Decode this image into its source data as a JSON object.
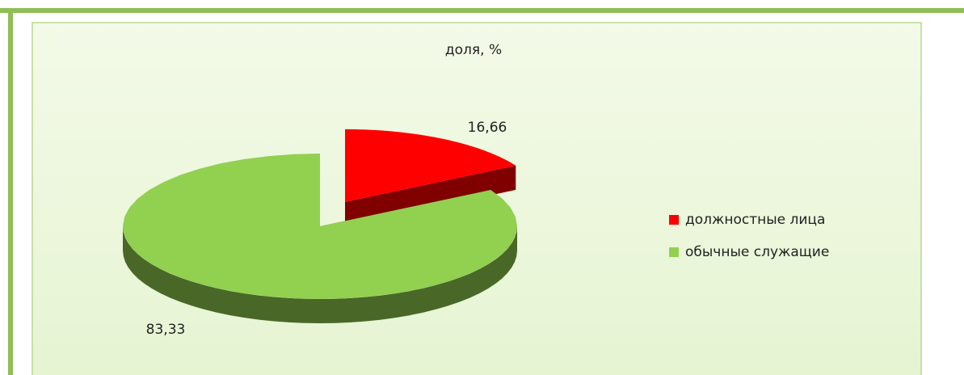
{
  "chart_data": {
    "type": "pie",
    "title": "доля, %",
    "categories": [
      "должностные лица",
      "обычные служащие"
    ],
    "values": [
      16.66,
      83.33
    ],
    "value_labels": [
      "16,66",
      "83,33"
    ],
    "colors": [
      "#ff0000",
      "#92d050"
    ],
    "legend": "right"
  }
}
